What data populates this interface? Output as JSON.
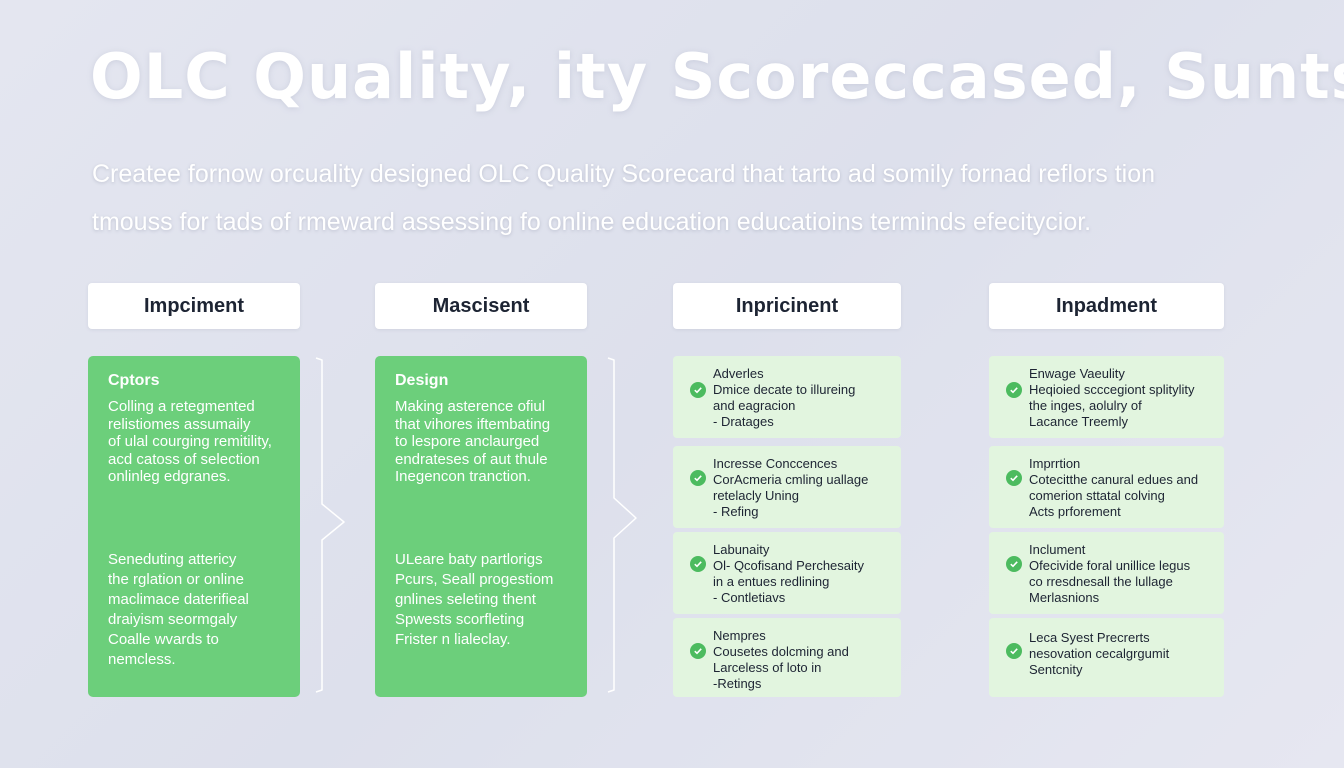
{
  "title": "OLC Quality, ity Scoreccased, Sunts",
  "subtitle": {
    "line1": "Createe fornow orcuality designed OLC Quality Scorecard that tarto ad somily fornad reflors tion",
    "line2": "tmouss for tads of rmeward assessing fo online education educatioins terminds efecitycior."
  },
  "columns": [
    {
      "header": "Impciment"
    },
    {
      "header": "Mascisent"
    },
    {
      "header": "Inpricinent"
    },
    {
      "header": "Inpadment"
    }
  ],
  "panels": [
    {
      "title": "Cptors",
      "para1": [
        "Colling a retegmented",
        "relistiomes assumaily",
        "of ulal courging remitility,",
        "acd catoss of selection",
        "onlinleg edgranes."
      ],
      "para2": [
        "Seneduting attericy",
        "the rglation or online",
        "maclimace daterifieal",
        "draiyism seormgaly",
        "Coalle wvards to",
        "nemcless."
      ]
    },
    {
      "title": "Design",
      "para1": [
        "Making asterence ofiul",
        "that vihores iftembating",
        "to lespore anclaurged",
        "endrateses of aut thule",
        "Inegencon tranction."
      ],
      "para2": [
        "ULeare baty partlorigs",
        "Pcurs, Seall progestiom",
        "gnlines seleting thent",
        "Spwests scorfleting",
        "Frister n lialeclay."
      ]
    }
  ],
  "cards": [
    [
      {
        "lines": [
          "Adverles",
          "Dmice decate to illureing",
          "and eagracion",
          "- Dratages"
        ]
      },
      {
        "lines": [
          "Incresse Conccences",
          "CorAcmeria cmling uallage",
          "retelacly Uning",
          "- Refing"
        ]
      },
      {
        "lines": [
          "Labunaity",
          "Ol- Qcofisand Perchesaity",
          "in a entues redlining",
          "- Contletiavs"
        ]
      },
      {
        "lines": [
          "Nempres",
          "Cousetes dolcming and",
          "Larceless of loto in",
          "-Retings"
        ]
      }
    ],
    [
      {
        "lines": [
          "Enwage Vaeulity",
          "Heqioied scccegiont splitylity",
          "the inges, aolulry of",
          "Lacance Treemly"
        ]
      },
      {
        "lines": [
          "Imprrtion",
          "Cotecitthe canural edues and",
          "comerion sttatal colving",
          "Acts prforement"
        ]
      },
      {
        "lines": [
          "Inclument",
          "Ofecivide foral unillice legus",
          "co rresdnesall the lullage",
          "Merlasnions"
        ]
      },
      {
        "lines": [
          "Leca Syest Precrerts",
          "nesovation cecalgrgumit",
          "Sentcnity"
        ]
      }
    ]
  ],
  "colors": {
    "green": "#6ccf7b",
    "card": "#e2f5df",
    "check": "#4cbb5f",
    "background": "#e2e4ef"
  }
}
